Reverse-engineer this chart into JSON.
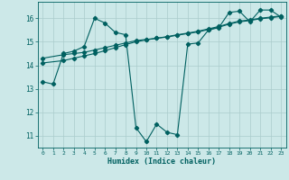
{
  "xlabel": "Humidex (Indice chaleur)",
  "background_color": "#cce8e8",
  "grid_color": "#aacccc",
  "line_color": "#006060",
  "xlim": [
    -0.5,
    23.5
  ],
  "ylim": [
    10.5,
    16.7
  ],
  "yticks": [
    11,
    12,
    13,
    14,
    15,
    16
  ],
  "xticks": [
    0,
    1,
    2,
    3,
    4,
    5,
    6,
    7,
    8,
    9,
    10,
    11,
    12,
    13,
    14,
    15,
    16,
    17,
    18,
    19,
    20,
    21,
    22,
    23
  ],
  "series1_x": [
    0,
    1,
    2,
    3,
    4,
    5,
    6,
    7,
    8,
    9,
    10,
    11,
    12,
    13,
    14,
    15,
    16,
    17,
    18,
    19,
    20,
    21,
    22,
    23
  ],
  "series1_y": [
    13.3,
    13.2,
    14.5,
    14.6,
    14.8,
    16.0,
    15.8,
    15.4,
    15.3,
    11.35,
    10.75,
    11.5,
    11.15,
    11.05,
    14.9,
    14.95,
    15.5,
    15.6,
    16.25,
    16.3,
    15.85,
    16.35,
    16.35,
    16.05
  ],
  "series2_x": [
    0,
    2,
    3,
    4,
    5,
    6,
    7,
    8,
    9,
    10,
    11,
    12,
    13,
    14,
    15,
    16,
    17,
    18,
    19,
    20,
    21,
    22,
    23
  ],
  "series2_y": [
    14.3,
    14.45,
    14.5,
    14.55,
    14.65,
    14.75,
    14.85,
    14.95,
    15.05,
    15.1,
    15.15,
    15.2,
    15.28,
    15.35,
    15.42,
    15.52,
    15.62,
    15.75,
    15.85,
    15.9,
    15.98,
    16.02,
    16.08
  ],
  "series3_x": [
    0,
    2,
    3,
    4,
    5,
    6,
    7,
    8,
    9,
    10,
    11,
    12,
    13,
    14,
    15,
    16,
    17,
    18,
    19,
    20,
    21,
    22,
    23
  ],
  "series3_y": [
    14.1,
    14.2,
    14.3,
    14.4,
    14.5,
    14.62,
    14.75,
    14.88,
    15.0,
    15.08,
    15.15,
    15.22,
    15.3,
    15.37,
    15.45,
    15.55,
    15.65,
    15.78,
    15.88,
    15.93,
    16.0,
    16.05,
    16.1
  ],
  "markersize": 2.2,
  "linewidth": 0.8
}
